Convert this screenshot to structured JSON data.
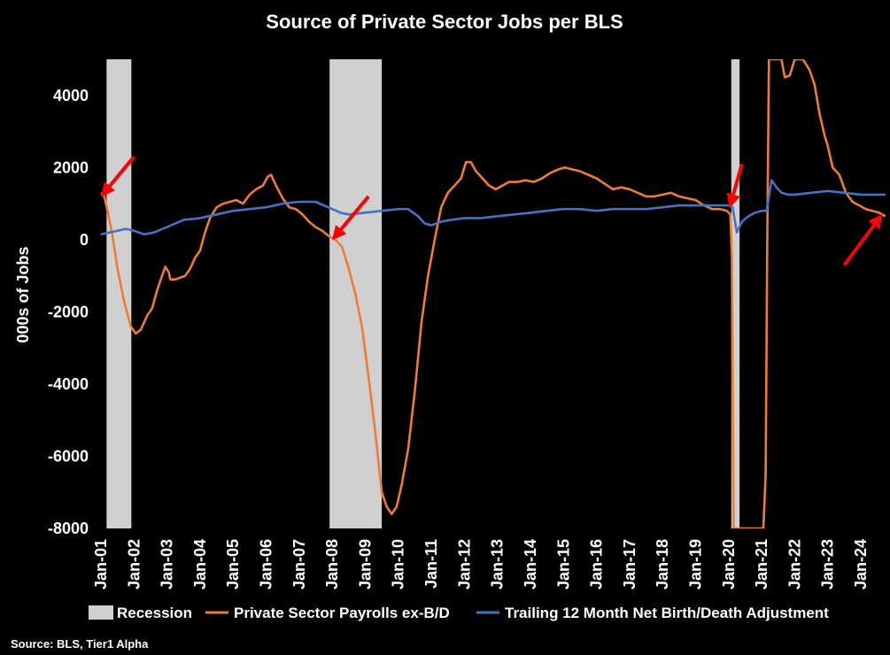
{
  "chart_data": {
    "type": "line",
    "title": "Source of Private Sector Jobs per BLS",
    "xlabel": "",
    "ylabel": "000s of Jobs",
    "ylim": [
      -8000,
      5000
    ],
    "yticks": [
      -8000,
      -6000,
      -4000,
      -2000,
      0,
      2000,
      4000
    ],
    "xrange": [
      2001.0,
      2024.75
    ],
    "xticks": [
      "Jan-01",
      "Jan-02",
      "Jan-03",
      "Jan-04",
      "Jan-05",
      "Jan-06",
      "Jan-07",
      "Jan-08",
      "Jan-09",
      "Jan-10",
      "Jan-11",
      "Jan-12",
      "Jan-13",
      "Jan-14",
      "Jan-15",
      "Jan-16",
      "Jan-17",
      "Jan-18",
      "Jan-19",
      "Jan-20",
      "Jan-21",
      "Jan-22",
      "Jan-23",
      "Jan-24"
    ],
    "legend_position": "bottom",
    "source": "Source: BLS, Tier1 Alpha",
    "recessions": [
      {
        "start": 2001.17,
        "end": 2001.92
      },
      {
        "start": 2007.92,
        "end": 2009.5
      },
      {
        "start": 2020.08,
        "end": 2020.33
      }
    ],
    "series": [
      {
        "name": "Private Sector Payrolls ex-B/D",
        "color": "#ED7D31",
        "points": [
          [
            2001.0,
            1300
          ],
          [
            2001.1,
            1200
          ],
          [
            2001.2,
            800
          ],
          [
            2001.35,
            100
          ],
          [
            2001.5,
            -800
          ],
          [
            2001.7,
            -1700
          ],
          [
            2001.9,
            -2400
          ],
          [
            2002.05,
            -2600
          ],
          [
            2002.2,
            -2500
          ],
          [
            2002.4,
            -2100
          ],
          [
            2002.55,
            -1900
          ],
          [
            2002.7,
            -1400
          ],
          [
            2002.85,
            -1000
          ],
          [
            2002.95,
            -750
          ],
          [
            2003.05,
            -900
          ],
          [
            2003.1,
            -1100
          ],
          [
            2003.25,
            -1100
          ],
          [
            2003.4,
            -1050
          ],
          [
            2003.55,
            -1000
          ],
          [
            2003.7,
            -800
          ],
          [
            2003.85,
            -500
          ],
          [
            2004.0,
            -300
          ],
          [
            2004.15,
            200
          ],
          [
            2004.3,
            600
          ],
          [
            2004.5,
            900
          ],
          [
            2004.7,
            1000
          ],
          [
            2004.9,
            1050
          ],
          [
            2005.1,
            1100
          ],
          [
            2005.3,
            1000
          ],
          [
            2005.5,
            1250
          ],
          [
            2005.7,
            1400
          ],
          [
            2005.9,
            1500
          ],
          [
            2006.05,
            1750
          ],
          [
            2006.15,
            1800
          ],
          [
            2006.3,
            1500
          ],
          [
            2006.5,
            1150
          ],
          [
            2006.7,
            900
          ],
          [
            2006.9,
            850
          ],
          [
            2007.1,
            700
          ],
          [
            2007.3,
            500
          ],
          [
            2007.5,
            350
          ],
          [
            2007.7,
            250
          ],
          [
            2007.9,
            100
          ],
          [
            2008.1,
            0
          ],
          [
            2008.3,
            -200
          ],
          [
            2008.5,
            -800
          ],
          [
            2008.7,
            -1500
          ],
          [
            2008.9,
            -2400
          ],
          [
            2009.1,
            -3800
          ],
          [
            2009.3,
            -5300
          ],
          [
            2009.5,
            -7000
          ],
          [
            2009.65,
            -7400
          ],
          [
            2009.8,
            -7600
          ],
          [
            2009.95,
            -7400
          ],
          [
            2010.1,
            -6800
          ],
          [
            2010.3,
            -5800
          ],
          [
            2010.5,
            -4200
          ],
          [
            2010.7,
            -2300
          ],
          [
            2010.9,
            -1000
          ],
          [
            2011.1,
            0
          ],
          [
            2011.3,
            900
          ],
          [
            2011.5,
            1300
          ],
          [
            2011.7,
            1500
          ],
          [
            2011.9,
            1700
          ],
          [
            2012.05,
            2150
          ],
          [
            2012.2,
            2150
          ],
          [
            2012.35,
            1900
          ],
          [
            2012.55,
            1700
          ],
          [
            2012.75,
            1500
          ],
          [
            2012.95,
            1400
          ],
          [
            2013.15,
            1500
          ],
          [
            2013.35,
            1600
          ],
          [
            2013.6,
            1600
          ],
          [
            2013.85,
            1650
          ],
          [
            2014.1,
            1600
          ],
          [
            2014.35,
            1700
          ],
          [
            2014.6,
            1850
          ],
          [
            2014.85,
            1950
          ],
          [
            2015.05,
            2000
          ],
          [
            2015.25,
            1950
          ],
          [
            2015.5,
            1900
          ],
          [
            2015.75,
            1800
          ],
          [
            2016.0,
            1700
          ],
          [
            2016.25,
            1550
          ],
          [
            2016.5,
            1400
          ],
          [
            2016.75,
            1450
          ],
          [
            2017.0,
            1400
          ],
          [
            2017.25,
            1300
          ],
          [
            2017.5,
            1200
          ],
          [
            2017.75,
            1200
          ],
          [
            2018.0,
            1250
          ],
          [
            2018.25,
            1300
          ],
          [
            2018.5,
            1200
          ],
          [
            2018.75,
            1150
          ],
          [
            2019.0,
            1100
          ],
          [
            2019.25,
            950
          ],
          [
            2019.5,
            850
          ],
          [
            2019.75,
            850
          ],
          [
            2019.95,
            800
          ],
          [
            2020.05,
            700
          ],
          [
            2020.1,
            -500
          ],
          [
            2020.15,
            -8000
          ],
          [
            2021.05,
            -8000
          ],
          [
            2021.12,
            -6500
          ],
          [
            2021.17,
            0
          ],
          [
            2021.22,
            5000
          ],
          [
            2021.6,
            5000
          ],
          [
            2021.7,
            4500
          ],
          [
            2021.85,
            4550
          ],
          [
            2022.0,
            5000
          ],
          [
            2022.25,
            5000
          ],
          [
            2022.45,
            4700
          ],
          [
            2022.6,
            4300
          ],
          [
            2022.75,
            3500
          ],
          [
            2022.9,
            2900
          ],
          [
            2023.0,
            2600
          ],
          [
            2023.15,
            2000
          ],
          [
            2023.35,
            1800
          ],
          [
            2023.55,
            1300
          ],
          [
            2023.75,
            1050
          ],
          [
            2023.95,
            950
          ],
          [
            2024.15,
            850
          ],
          [
            2024.35,
            800
          ],
          [
            2024.55,
            750
          ],
          [
            2024.75,
            650
          ]
        ]
      },
      {
        "name": "Trailing 12 Month Net Birth/Death Adjustment",
        "color": "#4472C4",
        "points": [
          [
            2001.0,
            150
          ],
          [
            2001.25,
            200
          ],
          [
            2001.5,
            250
          ],
          [
            2001.75,
            300
          ],
          [
            2002.0,
            250
          ],
          [
            2002.3,
            150
          ],
          [
            2002.6,
            200
          ],
          [
            2003.0,
            350
          ],
          [
            2003.25,
            450
          ],
          [
            2003.5,
            550
          ],
          [
            2004.0,
            600
          ],
          [
            2004.5,
            700
          ],
          [
            2005.0,
            800
          ],
          [
            2005.5,
            850
          ],
          [
            2006.0,
            900
          ],
          [
            2006.5,
            1000
          ],
          [
            2007.0,
            1050
          ],
          [
            2007.5,
            1050
          ],
          [
            2008.0,
            850
          ],
          [
            2008.25,
            750
          ],
          [
            2008.5,
            700
          ],
          [
            2009.0,
            750
          ],
          [
            2009.5,
            800
          ],
          [
            2010.0,
            850
          ],
          [
            2010.3,
            850
          ],
          [
            2010.6,
            650
          ],
          [
            2010.8,
            450
          ],
          [
            2011.0,
            400
          ],
          [
            2011.3,
            500
          ],
          [
            2011.6,
            550
          ],
          [
            2012.0,
            600
          ],
          [
            2012.5,
            600
          ],
          [
            2013.0,
            650
          ],
          [
            2013.5,
            700
          ],
          [
            2014.0,
            750
          ],
          [
            2014.5,
            800
          ],
          [
            2015.0,
            850
          ],
          [
            2015.5,
            850
          ],
          [
            2016.0,
            800
          ],
          [
            2016.5,
            850
          ],
          [
            2017.0,
            850
          ],
          [
            2017.5,
            850
          ],
          [
            2018.0,
            900
          ],
          [
            2018.5,
            950
          ],
          [
            2019.0,
            950
          ],
          [
            2019.5,
            950
          ],
          [
            2020.0,
            950
          ],
          [
            2020.12,
            900
          ],
          [
            2020.25,
            200
          ],
          [
            2020.4,
            500
          ],
          [
            2020.6,
            650
          ],
          [
            2020.8,
            750
          ],
          [
            2021.0,
            800
          ],
          [
            2021.15,
            800
          ],
          [
            2021.3,
            1650
          ],
          [
            2021.45,
            1450
          ],
          [
            2021.6,
            1300
          ],
          [
            2021.8,
            1250
          ],
          [
            2022.0,
            1250
          ],
          [
            2022.5,
            1300
          ],
          [
            2023.0,
            1350
          ],
          [
            2023.5,
            1300
          ],
          [
            2024.0,
            1250
          ],
          [
            2024.5,
            1250
          ],
          [
            2024.75,
            1250
          ]
        ]
      }
    ],
    "legend": [
      {
        "label": "Recession",
        "kind": "box",
        "color": "#D0D0D0"
      },
      {
        "label": "Private Sector Payrolls ex-B/D",
        "kind": "line",
        "color": "#ED7D31"
      },
      {
        "label": "Trailing 12 Month Net Birth/Death Adjustment",
        "kind": "line",
        "color": "#4472C4"
      }
    ],
    "annotations": [
      {
        "type": "arrow",
        "color": "#FF0000",
        "at": [
          2001.05,
          1250
        ],
        "from": [
          2002.0,
          2300
        ]
      },
      {
        "type": "arrow",
        "color": "#FF0000",
        "at": [
          2008.05,
          50
        ],
        "from": [
          2009.1,
          1200
        ]
      },
      {
        "type": "arrow",
        "color": "#FF0000",
        "at": [
          2020.05,
          950
        ],
        "from": [
          2020.4,
          2100
        ]
      },
      {
        "type": "arrow",
        "color": "#FF0000",
        "at": [
          2024.6,
          650
        ],
        "from": [
          2023.5,
          -700
        ]
      }
    ]
  }
}
